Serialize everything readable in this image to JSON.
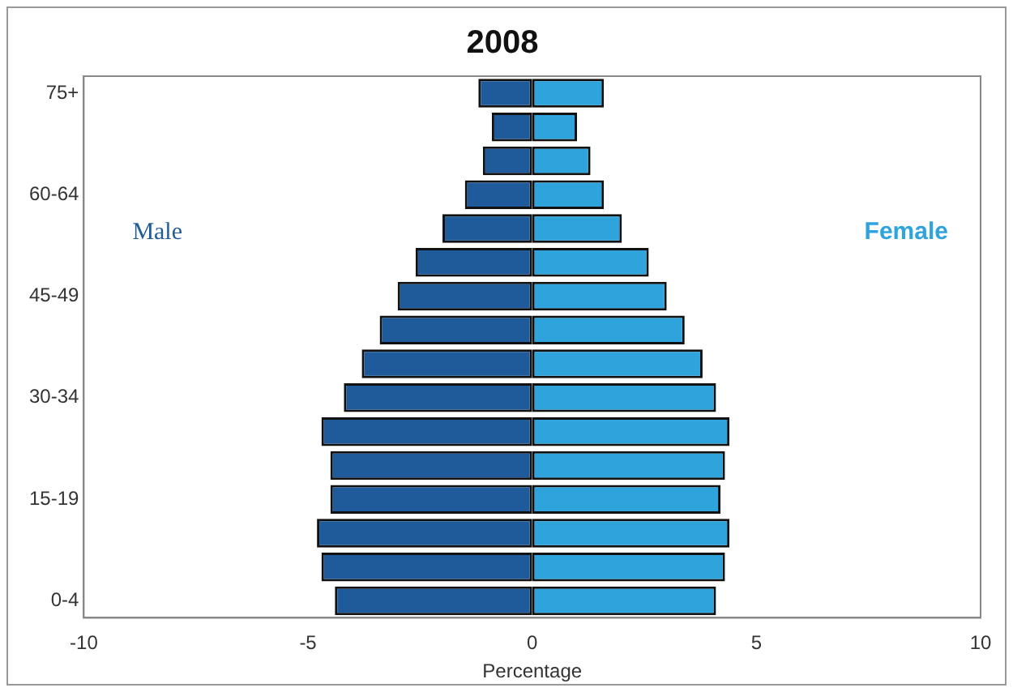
{
  "chart_data": {
    "type": "bar",
    "title": "2008",
    "xlabel": "Percentage",
    "orientation": "horizontal",
    "stacked": true,
    "categories": [
      "75+",
      null,
      null,
      "60-64",
      null,
      null,
      "45-49",
      null,
      null,
      "30-34",
      null,
      null,
      "15-19",
      null,
      null,
      "0-4"
    ],
    "series": [
      {
        "name": "Male",
        "color": "#1f5b9a",
        "values": [
          -1.2,
          -0.9,
          -1.1,
          -1.5,
          -2.0,
          -2.6,
          -3.0,
          -3.4,
          -3.8,
          -4.2,
          -4.7,
          -4.5,
          -4.5,
          -4.8,
          -4.7,
          -4.4
        ]
      },
      {
        "name": "Female",
        "color": "#2ea3dc",
        "values": [
          1.6,
          1.0,
          1.3,
          1.6,
          2.0,
          2.6,
          3.0,
          3.4,
          3.8,
          4.1,
          4.4,
          4.3,
          4.2,
          4.4,
          4.3,
          4.1
        ]
      }
    ],
    "xlim": [
      -10,
      10
    ],
    "xticks": [
      -10,
      -5,
      0,
      5,
      10
    ],
    "grid": false,
    "legend": false
  }
}
